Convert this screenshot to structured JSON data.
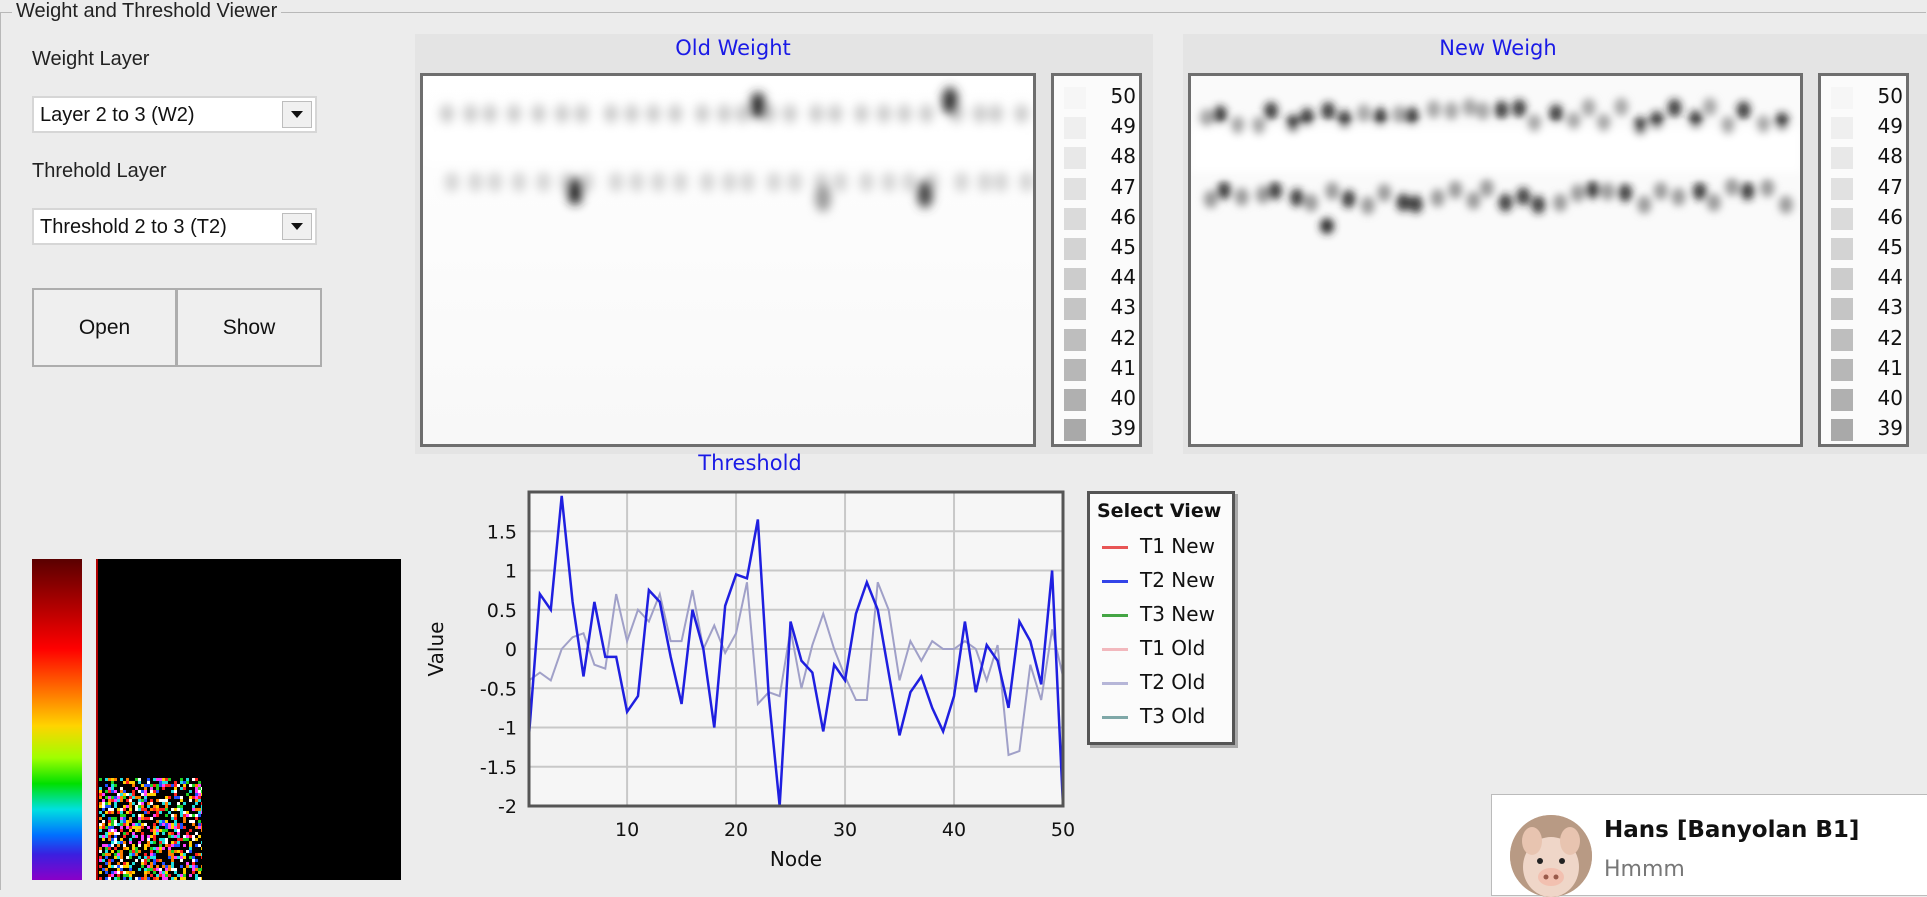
{
  "window": {
    "group_title": "Weight and Threshold Viewer"
  },
  "controls": {
    "weight_layer_label": "Weight Layer",
    "weight_layer_value": "Layer 2 to 3 (W2)",
    "threshold_layer_label": "Threhold Layer",
    "threshold_layer_value": "Threshold 2 to 3 (T2)",
    "open_label": "Open",
    "show_label": "Show"
  },
  "old_weight": {
    "title": "Old Weight"
  },
  "new_weight": {
    "title": "New Weigh"
  },
  "heat_legend": {
    "values": [
      "50",
      "49",
      "48",
      "47",
      "46",
      "45",
      "44",
      "43",
      "42",
      "41",
      "40",
      "39"
    ]
  },
  "chart_data": {
    "type": "line",
    "title": "Threshold",
    "xlabel": "Node",
    "ylabel": "Value",
    "xlim": [
      1,
      50
    ],
    "ylim": [
      -2,
      2
    ],
    "x_ticks": [
      "10",
      "20",
      "30",
      "40",
      "50"
    ],
    "y_ticks": [
      "1.5",
      "1",
      "0.5",
      "0",
      "-0.5",
      "-1",
      "-1.5",
      "-2"
    ],
    "grid": true,
    "x": [
      1,
      2,
      3,
      4,
      5,
      6,
      7,
      8,
      9,
      10,
      11,
      12,
      13,
      14,
      15,
      16,
      17,
      18,
      19,
      20,
      21,
      22,
      23,
      24,
      25,
      26,
      27,
      28,
      29,
      30,
      31,
      32,
      33,
      34,
      35,
      36,
      37,
      38,
      39,
      40,
      41,
      42,
      43,
      44,
      45,
      46,
      47,
      48,
      49,
      50
    ],
    "series": [
      {
        "name": "T2 New",
        "color": "#1f1fe0",
        "values": [
          -1.1,
          0.7,
          0.5,
          1.95,
          0.6,
          -0.35,
          0.6,
          -0.1,
          -0.1,
          -0.8,
          -0.6,
          0.75,
          0.6,
          -0.1,
          -0.7,
          0.5,
          0.0,
          -1.0,
          0.55,
          0.95,
          0.9,
          1.65,
          -0.6,
          -2.0,
          0.35,
          -0.15,
          -0.3,
          -1.05,
          -0.2,
          -0.4,
          0.45,
          0.85,
          0.5,
          -0.3,
          -1.1,
          -0.55,
          -0.35,
          -0.75,
          -1.05,
          -0.6,
          0.35,
          -0.55,
          0.05,
          -0.15,
          -0.75,
          0.35,
          0.1,
          -0.45,
          1.0,
          -2.0
        ]
      },
      {
        "name": "T2 Old",
        "color": "#a0a0c8",
        "values": [
          -0.4,
          -0.3,
          -0.4,
          0.0,
          0.15,
          0.2,
          -0.2,
          -0.25,
          0.7,
          0.1,
          0.5,
          0.35,
          0.7,
          0.1,
          0.1,
          0.75,
          0.0,
          0.3,
          -0.05,
          0.2,
          0.85,
          -0.7,
          -0.55,
          -0.6,
          0.25,
          -0.5,
          0.05,
          0.45,
          0.0,
          -0.35,
          -0.65,
          -0.65,
          0.85,
          0.5,
          -0.4,
          0.1,
          -0.15,
          0.1,
          0.0,
          0.0,
          0.1,
          0.0,
          -0.4,
          0.05,
          -1.35,
          -1.3,
          -0.2,
          -0.65,
          0.25,
          -0.35
        ]
      }
    ],
    "legend_title": "Select View",
    "legend": [
      {
        "name": "T1 New",
        "color": "#e85555"
      },
      {
        "name": "T2 New",
        "color": "#3344e8"
      },
      {
        "name": "T3 New",
        "color": "#44a544"
      },
      {
        "name": "T1 Old",
        "color": "#f2b8bd"
      },
      {
        "name": "T2 Old",
        "color": "#b6b6d8"
      },
      {
        "name": "T3 Old",
        "color": "#7fa8a8"
      }
    ]
  },
  "notification": {
    "name": "Hans [Banyolan B1]",
    "message": "Hmmm"
  }
}
